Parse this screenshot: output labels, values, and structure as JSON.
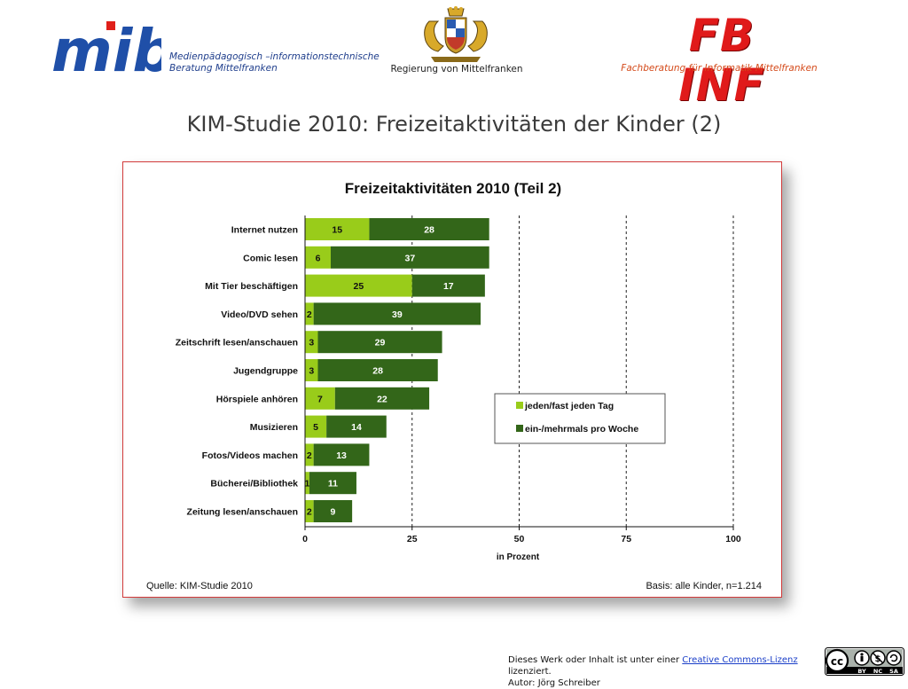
{
  "header": {
    "mib_logo_text": "mib",
    "mib_caption_line1": "Medienpädagogisch –informationstechnische",
    "mib_caption_line2": "Beratung Mittelfranken",
    "crest_caption": "Regierung von Mittelfranken",
    "fbinf_logo_text": "FB INF",
    "fbinf_caption": "Fachberatung für Informatik Mittelfranken"
  },
  "slide_title": "KIM-Studie 2010: Freizeitaktivitäten der Kinder (2)",
  "colors": {
    "light_green": "#99cc1a",
    "dark_green": "#336619",
    "frame_red": "#d23a3a",
    "license_link": "#1a3ec8"
  },
  "chart_data": {
    "type": "bar",
    "orientation": "horizontal",
    "stacked": true,
    "title": "Freizeitaktivitäten 2010 (Teil 2)",
    "xlabel": "in Prozent",
    "xlim": [
      0,
      100
    ],
    "xticks": [
      0,
      25,
      50,
      75,
      100
    ],
    "grid": "dashed vertical lines at 25, 50, 75, 100",
    "legend_position": "right-middle",
    "categories": [
      "Internet nutzen",
      "Comic lesen",
      "Mit Tier beschäftigen",
      "Video/DVD sehen",
      "Zeitschrift lesen/anschauen",
      "Jugendgruppe",
      "Hörspiele anhören",
      "Musizieren",
      "Fotos/Videos machen",
      "Bücherei/Bibliothek",
      "Zeitung lesen/anschauen"
    ],
    "series": [
      {
        "name": "jeden/fast jeden Tag",
        "color": "#99cc1a",
        "values": [
          15,
          6,
          25,
          2,
          3,
          3,
          7,
          5,
          2,
          1,
          2
        ]
      },
      {
        "name": "ein-/mehrmals pro Woche",
        "color": "#336619",
        "values": [
          28,
          37,
          17,
          39,
          29,
          28,
          22,
          14,
          13,
          11,
          9
        ]
      }
    ],
    "source": "Quelle: KIM-Studie 2010",
    "basis": "Basis: alle Kinder, n=1.214"
  },
  "footer": {
    "license_prefix": "Dieses Werk oder Inhalt ist unter einer ",
    "license_link": "Creative Commons-Lizenz",
    "license_suffix": " lizenziert.",
    "author": "Autor: Jörg Schreiber",
    "cc_badge_labels": [
      "BY",
      "NC",
      "SA"
    ]
  }
}
